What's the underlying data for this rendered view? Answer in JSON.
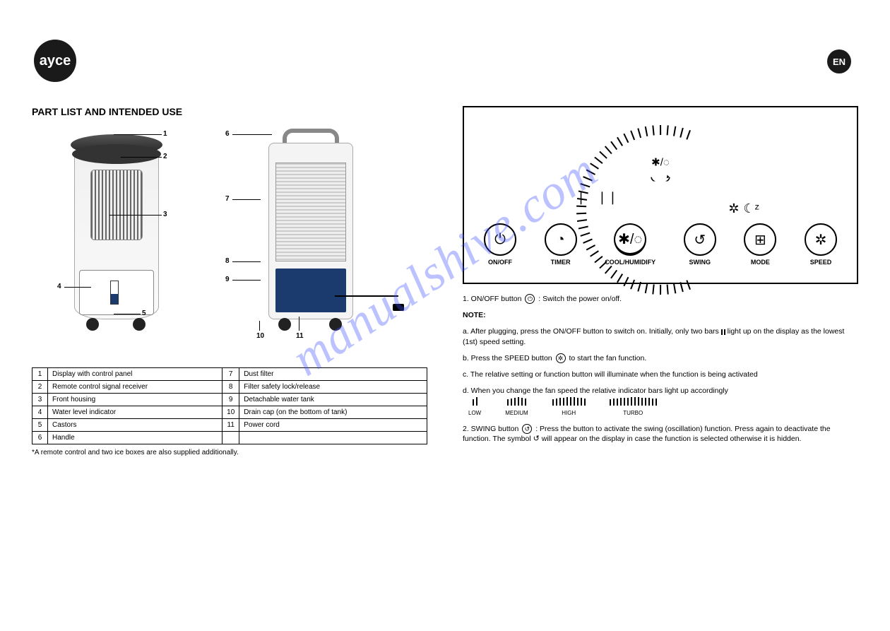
{
  "brand": "ayce",
  "lang_badge": "EN",
  "section_title": "PART LIST AND INTENDED USE",
  "product_front_callouts": {
    "c1": "1",
    "c2": "2",
    "c3": "3",
    "c4": "4",
    "c5": "5"
  },
  "product_back_callouts": {
    "c6": "6",
    "c7": "7",
    "c8": "8",
    "c9": "9",
    "c10": "10",
    "c11": "11"
  },
  "parts": [
    {
      "n": "1",
      "name": "Display with control panel"
    },
    {
      "n": "2",
      "name": "Remote control signal receiver"
    },
    {
      "n": "3",
      "name": "Front housing"
    },
    {
      "n": "4",
      "name": "Water level indicator"
    },
    {
      "n": "5",
      "name": "Castors"
    },
    {
      "n": "6",
      "name": "Handle"
    },
    {
      "n": "7",
      "name": "Dust filter"
    },
    {
      "n": "8",
      "name": "Filter safety lock/release"
    },
    {
      "n": "9",
      "name": "Detachable water tank"
    },
    {
      "n": "10",
      "name": "Drain cap (on the bottom of tank)"
    },
    {
      "n": "11",
      "name": "Power cord"
    }
  ],
  "note_asterisk": "*A remote control and two ice boxes are also supplied additionally.",
  "panel": {
    "center_top": "✱/◌",
    "buttons": [
      {
        "icon": "⏻",
        "label": "ON/OFF",
        "name": "power-button"
      },
      {
        "icon": "◔",
        "label": "TIMER",
        "name": "timer-button"
      },
      {
        "icon": "✱/◌",
        "label": "COOL/HUMIDIFY",
        "name": "cool-button",
        "under": true
      },
      {
        "icon": "↺",
        "label": "SWING",
        "name": "swing-button"
      },
      {
        "icon": "⊞",
        "label": "MODE",
        "name": "mode-button"
      },
      {
        "icon": "✲",
        "label": "SPEED",
        "name": "speed-button"
      }
    ],
    "mode_icons": [
      "✲",
      "☾ᶻ"
    ]
  },
  "explanations": {
    "l1a": "1. ON/OFF button ",
    "l1b": " : Switch the power on/off.",
    "l2": "NOTE:",
    "l3a": "a. After plugging, press the ON/OFF button to switch on. Initially, only two bars ",
    "l3b": " light up on the display as the lowest (1st) speed setting.",
    "l4a": "b. Press the SPEED button ",
    "l4b": " to start the fan function.",
    "l5": "c. The relative setting or function button will illuminate when the function is being activated",
    "l6": "d. When you change the fan speed the relative indicator bars light up accordingly",
    "speed_labels": [
      "LOW",
      "MEDIUM",
      "HIGH",
      "TURBO"
    ],
    "l7a": "2. SWING button ",
    "l7b": " : Press the button to activate the swing (oscillation)",
    "l8a": "function. Press again to deactivate the function. The symbol ",
    "l8b": " will",
    "l9": "appear on the display in case the function is selected otherwise it is hidden."
  },
  "watermark": "manualshive.com",
  "colors": {
    "ink": "#000000",
    "tank": "#1b3b6f",
    "watermark": "rgba(60,80,255,0.35)"
  }
}
